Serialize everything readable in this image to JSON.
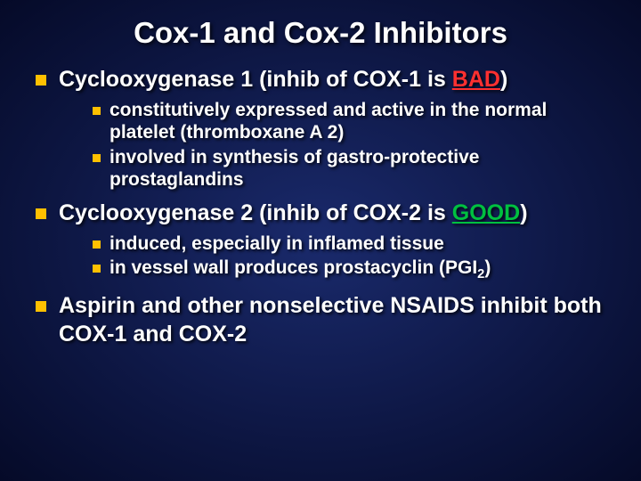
{
  "colors": {
    "background_center": "#1a2a6c",
    "background_edge": "#050a28",
    "bullet": "#ffc000",
    "text": "#ffffff",
    "bad": "#ff3030",
    "good": "#00c040"
  },
  "typography": {
    "title_fontsize": 33,
    "level1_fontsize": 25,
    "level2_fontsize": 21,
    "font_family": "Arial",
    "font_weight": "bold"
  },
  "title": "Cox-1 and Cox-2 Inhibitors",
  "section1": {
    "prefix": "Cyclooxygenase 1 (inhib of COX-1 is ",
    "highlight": "BAD",
    "suffix": ")",
    "sub1": "constitutively expressed and active in the normal platelet (thromboxane A 2)",
    "sub2": "involved in synthesis of gastro-protective prostaglandins"
  },
  "section2": {
    "prefix": "Cyclooxygenase 2 (inhib of COX-2 is ",
    "highlight": "GOOD",
    "suffix": ")",
    "sub1": "induced, especially in inflamed tissue",
    "sub2_a": "in vessel wall produces prostacyclin (PGI",
    "sub2_sub": "2",
    "sub2_b": ")"
  },
  "section3": {
    "text": "Aspirin and other nonselective NSAIDS inhibit both COX-1 and COX-2"
  }
}
